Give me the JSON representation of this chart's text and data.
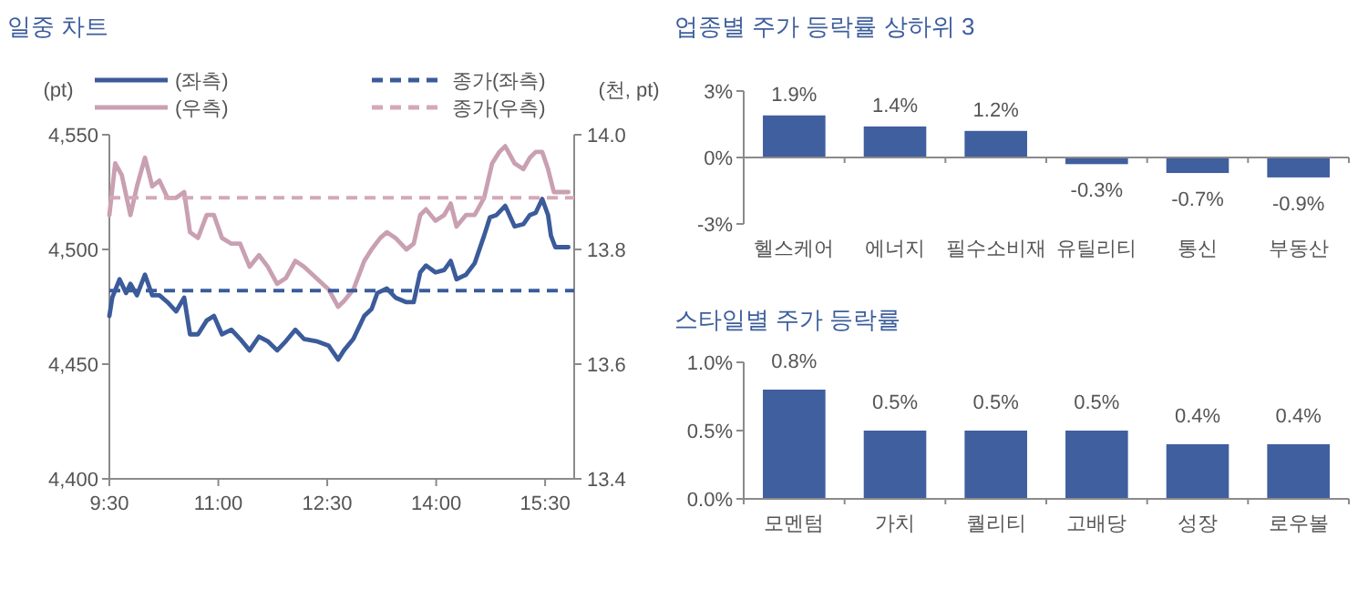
{
  "chart_data": [
    {
      "type": "line",
      "title": "일중 차트",
      "ylabel": "(pt)",
      "y2label": "(천, pt)",
      "xlim": [
        9.5,
        15.9
      ],
      "xticks": [
        {
          "value": 9.5,
          "label": "9:30"
        },
        {
          "value": 11,
          "label": "11:00"
        },
        {
          "value": 12.5,
          "label": "12:30"
        },
        {
          "value": 14,
          "label": "14:00"
        },
        {
          "value": 15.5,
          "label": "15:30"
        }
      ],
      "ylim": [
        4400,
        4550
      ],
      "yticks": [
        {
          "value": 4400,
          "label": "4,400"
        },
        {
          "value": 4450,
          "label": "4,450"
        },
        {
          "value": 4500,
          "label": "4,500"
        },
        {
          "value": 4550,
          "label": "4,550"
        }
      ],
      "y2lim": [
        13.4,
        14.0
      ],
      "y2ticks": [
        13.4,
        13.6,
        13.8,
        {
          "value": 14.0,
          "label": "14.0"
        }
      ],
      "legend": "top",
      "grid": false,
      "marker": "none",
      "line_style": "solid",
      "series": [
        {
          "name": "(좌측)",
          "color": "#3b5b9a",
          "x": [
            9.5,
            9.54,
            9.64,
            9.73,
            9.79,
            9.88,
            9.99,
            10.09,
            10.19,
            10.3,
            10.42,
            10.53,
            10.61,
            10.72,
            10.84,
            10.94,
            11.05,
            11.18,
            11.3,
            11.43,
            11.56,
            11.68,
            11.81,
            11.93,
            12.06,
            12.18,
            12.35,
            12.52,
            12.65,
            12.73,
            12.86,
            13.01,
            13.11,
            13.19,
            13.32,
            13.44,
            13.59,
            13.69,
            13.78,
            13.86,
            13.99,
            14.11,
            14.2,
            14.28,
            14.41,
            14.53,
            14.66,
            14.74,
            14.83,
            14.95,
            15.08,
            15.2,
            15.29,
            15.37,
            15.46,
            15.54,
            15.58,
            15.64,
            15.82
          ],
          "values": [
            4471,
            4479,
            4487,
            4481,
            4485,
            4480,
            4489,
            4480,
            4480,
            4477,
            4473,
            4479,
            4463,
            4463,
            4469,
            4471,
            4463,
            4465,
            4461,
            4456,
            4462,
            4460,
            4456,
            4460,
            4465,
            4461,
            4460,
            4458,
            4452,
            4456,
            4461,
            4471,
            4474,
            4481,
            4483,
            4479,
            4477,
            4477,
            4490,
            4493,
            4490,
            4491,
            4495,
            4487,
            4489,
            4494,
            4506,
            4514,
            4515,
            4519,
            4510,
            4511,
            4515,
            4516,
            4522,
            4515,
            4506,
            4501,
            4501
          ]
        },
        {
          "name": "(우측)",
          "color": "#c9a0b2",
          "axis": "y2",
          "x": [
            9.5,
            9.58,
            9.67,
            9.79,
            9.88,
            9.99,
            10.09,
            10.19,
            10.3,
            10.42,
            10.53,
            10.61,
            10.72,
            10.84,
            10.94,
            11.05,
            11.18,
            11.3,
            11.43,
            11.56,
            11.68,
            11.81,
            11.93,
            12.06,
            12.18,
            12.35,
            12.52,
            12.65,
            12.73,
            12.86,
            13.01,
            13.11,
            13.23,
            13.32,
            13.44,
            13.59,
            13.69,
            13.78,
            13.86,
            13.99,
            14.11,
            14.2,
            14.28,
            14.41,
            14.53,
            14.66,
            14.77,
            14.87,
            14.95,
            15.08,
            15.2,
            15.29,
            15.37,
            15.46,
            15.54,
            15.62,
            15.82
          ],
          "values": [
            13.86,
            13.95,
            13.93,
            13.86,
            13.91,
            13.96,
            13.91,
            13.92,
            13.89,
            13.89,
            13.9,
            13.83,
            13.82,
            13.86,
            13.86,
            13.82,
            13.81,
            13.81,
            13.77,
            13.79,
            13.77,
            13.74,
            13.75,
            13.78,
            13.77,
            13.75,
            13.73,
            13.7,
            13.71,
            13.73,
            13.78,
            13.8,
            13.82,
            13.83,
            13.82,
            13.8,
            13.81,
            13.86,
            13.87,
            13.85,
            13.86,
            13.88,
            13.84,
            13.86,
            13.86,
            13.89,
            13.95,
            13.97,
            13.98,
            13.95,
            13.94,
            13.96,
            13.97,
            13.97,
            13.94,
            13.9,
            13.9
          ]
        }
      ],
      "ref_lines": [
        {
          "axis": "y",
          "value": 4482,
          "label": "종가(좌측)",
          "color": "#3b5b9a",
          "line_style": "dashed"
        },
        {
          "axis": "y2",
          "value": 13.89,
          "label": "종가(우측)",
          "color": "#d4a8b8",
          "line_style": "dashed"
        }
      ]
    },
    {
      "type": "bar",
      "title": "업종별 주가 등락률 상하위 3",
      "categories": [
        "헬스케어",
        "에너지",
        "필수소비재",
        "유틸리티",
        "통신",
        "부동산"
      ],
      "values": [
        1.9,
        1.4,
        1.2,
        -0.3,
        -0.7,
        -0.9
      ],
      "color": "#3f5f9f",
      "value_labels": [
        "1.9%",
        "1.4%",
        "1.2%",
        "-0.3%",
        "-0.7%",
        "-0.9%"
      ],
      "ylim": [
        -3,
        3
      ],
      "yticks": [
        {
          "value": -3,
          "label": "-3%"
        },
        {
          "value": 0,
          "label": "0%"
        },
        {
          "value": 3,
          "label": "3%"
        }
      ]
    },
    {
      "type": "bar",
      "title": "스타일별 주가 등락률",
      "categories": [
        "모멘텀",
        "가치",
        "퀄리티",
        "고배당",
        "성장",
        "로우볼"
      ],
      "values": [
        0.8,
        0.5,
        0.5,
        0.5,
        0.4,
        0.4
      ],
      "color": "#3f5f9f",
      "value_labels": [
        "0.8%",
        "0.5%",
        "0.5%",
        "0.5%",
        "0.4%",
        "0.4%"
      ],
      "ylim": [
        0,
        1.0
      ],
      "yticks": [
        {
          "value": 0,
          "label": "0.0%"
        },
        {
          "value": 0.5,
          "label": "0.5%"
        },
        {
          "value": 1.0,
          "label": "1.0%"
        }
      ]
    }
  ]
}
